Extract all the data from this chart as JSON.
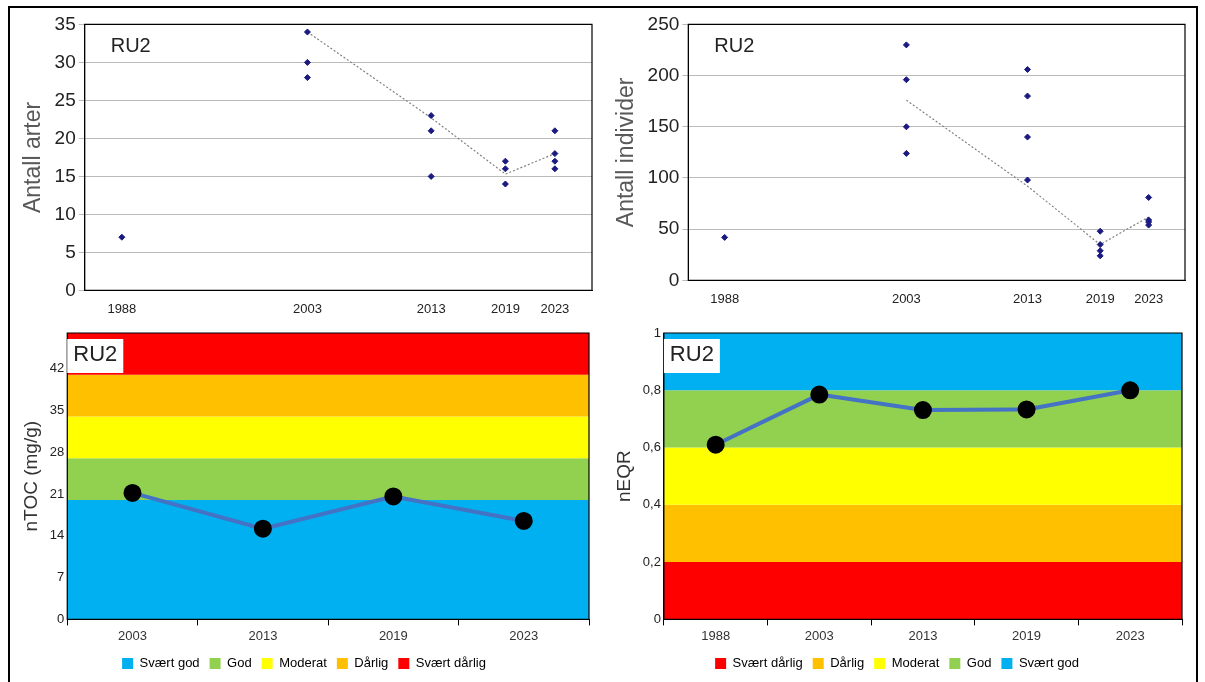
{
  "chart_data": [
    {
      "type": "scatter",
      "ylabel": "Antall arter",
      "annotations": [
        "RU2"
      ],
      "xlim": [
        1985,
        2026
      ],
      "xticks": [
        1988,
        2003,
        2013,
        2019,
        2023
      ],
      "ylim": [
        0,
        35
      ],
      "yticks": [
        0,
        5,
        10,
        15,
        20,
        25,
        30,
        35
      ],
      "grid": "y",
      "series": [
        {
          "type": "scatter",
          "color": "#1a1a80",
          "marker": "diamond",
          "x": [
            1988,
            2003,
            2003,
            2003,
            2013,
            2013,
            2013,
            2019,
            2019,
            2019,
            2023,
            2023,
            2023,
            2023
          ],
          "values": [
            7,
            34,
            30,
            28,
            23,
            21,
            15,
            17,
            16,
            14,
            21,
            18,
            17,
            16
          ]
        },
        {
          "type": "line",
          "color": "#808080",
          "marker": "none",
          "line_style": "dotted",
          "x": [
            2003,
            2013,
            2019,
            2023
          ],
          "values": [
            34,
            22.7,
            15.3,
            18
          ]
        }
      ]
    },
    {
      "type": "scatter",
      "ylabel": "Antall individer",
      "annotations": [
        "RU2"
      ],
      "xlim": [
        1985,
        2026
      ],
      "xticks": [
        1988,
        2003,
        2013,
        2019,
        2023
      ],
      "ylim": [
        0,
        250
      ],
      "yticks": [
        0,
        50,
        100,
        150,
        200,
        250
      ],
      "grid": "y",
      "series": [
        {
          "type": "scatter",
          "color": "#1a1a80",
          "marker": "diamond",
          "x": [
            1988,
            2003,
            2003,
            2003,
            2003,
            2013,
            2013,
            2013,
            2013,
            2019,
            2019,
            2019,
            2019,
            2023,
            2023,
            2023,
            2023
          ],
          "values": [
            42,
            230,
            196,
            150,
            124,
            206,
            180,
            140,
            98,
            48,
            35,
            29,
            24,
            81,
            59,
            57,
            54
          ]
        },
        {
          "type": "line",
          "color": "#808080",
          "marker": "none",
          "line_style": "dotted",
          "x": [
            2003,
            2013,
            2019,
            2023
          ],
          "values": [
            176,
            92,
            35,
            62
          ]
        }
      ]
    },
    {
      "type": "line",
      "ylabel": "nTOC (mg/g)",
      "annotations": [
        "RU2"
      ],
      "categories": [
        "2003",
        "2013",
        "2019",
        "2023"
      ],
      "ylim": [
        0,
        48
      ],
      "yticks": [
        0,
        7,
        14,
        21,
        28,
        35,
        42
      ],
      "legend": "bottom",
      "marker": "circle",
      "series": [
        {
          "color": "#4472c4",
          "values": [
            21.2,
            15.2,
            20.6,
            16.5
          ]
        }
      ],
      "bands": [
        {
          "axis": "y",
          "from": 0,
          "to": 20,
          "label": "Svært god",
          "color": "#00b0f0"
        },
        {
          "axis": "y",
          "from": 20,
          "to": 27,
          "label": "God",
          "color": "#92d050"
        },
        {
          "axis": "y",
          "from": 27,
          "to": 34,
          "label": "Moderat",
          "color": "#ffff00"
        },
        {
          "axis": "y",
          "from": 34,
          "to": 41,
          "label": "Dårlig",
          "color": "#ffc000"
        },
        {
          "axis": "y",
          "from": 41,
          "to": 48,
          "label": "Svært dårlig",
          "color": "#ff0000"
        }
      ]
    },
    {
      "type": "line",
      "ylabel": "nEQR",
      "annotations": [
        "RU2"
      ],
      "categories": [
        "1988",
        "2003",
        "2013",
        "2019",
        "2023"
      ],
      "ylim": [
        0,
        1
      ],
      "yticks": [
        0,
        {
          "value": 0.2,
          "label": "0,2"
        },
        {
          "value": 0.4,
          "label": "0,4"
        },
        {
          "value": 0.6,
          "label": "0,6"
        },
        {
          "value": 0.8,
          "label": "0,8"
        },
        1
      ],
      "legend": "bottom",
      "marker": "circle",
      "series": [
        {
          "color": "#4472c4",
          "values": [
            0.61,
            0.785,
            0.731,
            0.733,
            0.8
          ]
        }
      ],
      "bands": [
        {
          "axis": "y",
          "from": 0,
          "to": 0.2,
          "label": "Svært dårlig",
          "color": "#ff0000"
        },
        {
          "axis": "y",
          "from": 0.2,
          "to": 0.4,
          "label": "Dårlig",
          "color": "#ffc000"
        },
        {
          "axis": "y",
          "from": 0.4,
          "to": 0.6,
          "label": "Moderat",
          "color": "#ffff00"
        },
        {
          "axis": "y",
          "from": 0.6,
          "to": 0.8,
          "label": "God",
          "color": "#92d050"
        },
        {
          "axis": "y",
          "from": 0.8,
          "to": 1,
          "label": "Svært god",
          "color": "#00b0f0"
        }
      ]
    }
  ]
}
